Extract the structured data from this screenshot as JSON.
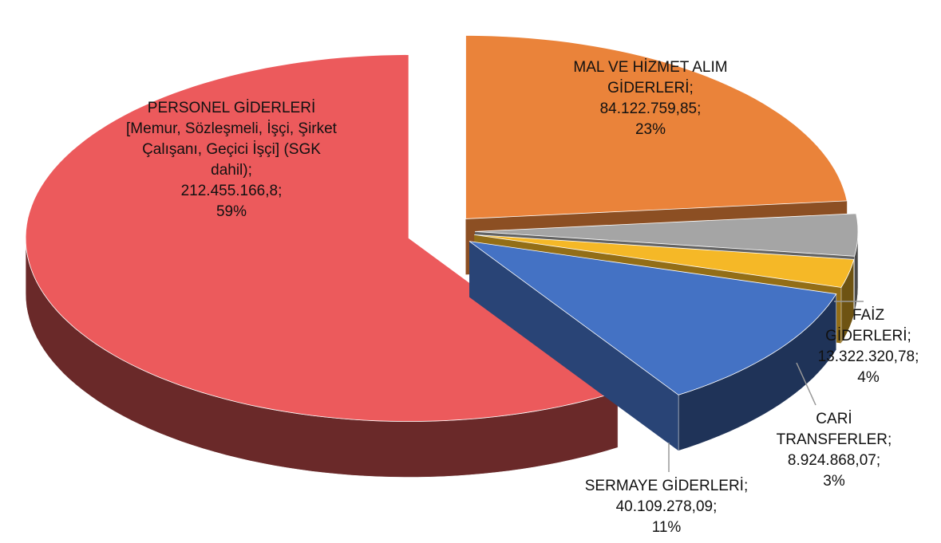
{
  "chart_data": {
    "type": "pie3d",
    "categories": [
      "MAL VE HİZMET ALIM GİDERLERİ;",
      "FAİZ GİDERLERİ;",
      "CARİ TRANSFERLER;",
      "SERMAYE GİDERLERİ;",
      "PERSONEL GİDERLERİ [Memur, Sözleşmeli, İşçi, Şirket Çalışanı, Geçici İşçi] (SGK dahil);"
    ],
    "values": [
      84122759.85,
      13322320.78,
      8924868.07,
      40109278.09,
      212455166.8
    ],
    "value_labels": [
      "84.122.759,85;",
      "13.322.320,78;",
      "8.924.868,07;",
      "40.109.278,09;",
      "212.455.166,8;"
    ],
    "percents": [
      23,
      4,
      3,
      11,
      59
    ],
    "percent_labels": [
      "23%",
      "4%",
      "3%",
      "11%",
      "59%"
    ],
    "colors": [
      "#ea833a",
      "#a5a5a5",
      "#f5b827",
      "#4472c4",
      "#ec5a5c"
    ]
  }
}
